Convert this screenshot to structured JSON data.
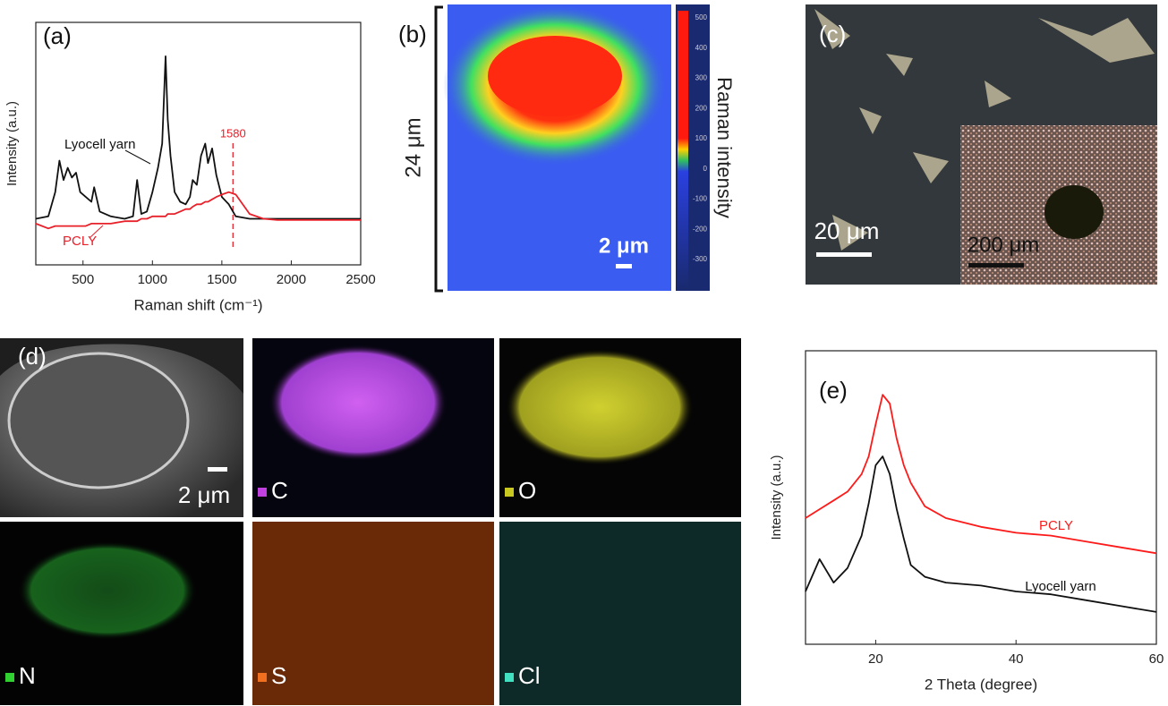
{
  "chart_data": [
    {
      "type": "line",
      "panel_label": "(a)",
      "xlabel": "Raman shift (cm⁻¹)",
      "ylabel": "Intensity (a.u.)",
      "xlim": [
        160,
        2500
      ],
      "xticks": [
        500,
        1000,
        1500,
        2000,
        2500
      ],
      "ylim": [
        0,
        100
      ],
      "marker_x": 1580,
      "x": [
        160,
        250,
        300,
        330,
        360,
        390,
        420,
        450,
        480,
        520,
        560,
        580,
        620,
        700,
        800,
        860,
        890,
        920,
        960,
        1000,
        1040,
        1070,
        1095,
        1110,
        1130,
        1160,
        1200,
        1240,
        1270,
        1290,
        1320,
        1350,
        1380,
        1400,
        1430,
        1460,
        1500,
        1550,
        1600,
        1700,
        1800,
        1900,
        2000,
        2200,
        2400,
        2500
      ],
      "series": [
        {
          "name": "Lyocell yarn",
          "color": "#111111",
          "values": [
            19,
            20,
            30,
            43,
            35,
            40,
            36,
            38,
            30,
            28,
            26,
            32,
            22,
            20,
            19,
            20,
            35,
            21,
            22,
            30,
            40,
            50,
            86,
            60,
            45,
            30,
            26,
            25,
            28,
            35,
            33,
            45,
            50,
            42,
            48,
            37,
            28,
            25,
            20,
            19,
            19,
            19,
            19,
            19,
            19,
            19
          ]
        },
        {
          "name": "PCLY",
          "color": "#e8202a",
          "values": [
            17,
            15,
            16,
            16,
            16,
            16,
            16,
            16,
            16,
            16,
            17,
            17,
            17,
            17,
            18,
            18,
            18,
            19,
            19,
            20,
            20,
            20,
            20,
            21,
            21,
            21,
            22,
            23,
            23,
            24,
            25,
            25,
            26,
            26,
            27,
            28,
            29,
            30,
            29,
            21,
            19,
            18.5,
            18.5,
            18.5,
            18.5,
            18.5
          ]
        }
      ]
    },
    {
      "type": "line",
      "panel_label": "(e)",
      "xlabel": "2 Theta (degree)",
      "ylabel": "Intensity (a.u.)",
      "xlim": [
        10,
        60
      ],
      "xticks": [
        20,
        40,
        60
      ],
      "ylim": [
        0,
        100
      ],
      "x": [
        10,
        12,
        14,
        16,
        18,
        19,
        20,
        21,
        22,
        23,
        24,
        25,
        27,
        30,
        35,
        40,
        45,
        50,
        55,
        60
      ],
      "series": [
        {
          "name": "PCLY",
          "color": "#ff1a1a",
          "values": [
            43,
            46,
            49,
            52,
            58,
            64,
            75,
            85,
            82,
            70,
            61,
            55,
            47,
            43,
            40,
            38,
            37,
            35,
            33,
            31
          ]
        },
        {
          "name": "Lyocell yarn",
          "color": "#111111",
          "values": [
            18,
            29,
            21,
            26,
            37,
            48,
            61,
            64,
            58,
            46,
            36,
            27,
            23,
            21,
            20,
            18,
            17,
            15,
            13,
            11
          ]
        }
      ]
    }
  ],
  "panel_b": {
    "label": "(b)",
    "height_label": "24 μm",
    "scale_bar": "2 μm",
    "colorbar_label": "Raman intensity",
    "colorbar_ticks": [
      500,
      400,
      300,
      200,
      100,
      0,
      -100,
      -200,
      -300
    ]
  },
  "panel_c": {
    "label": "(c)",
    "scale_bar": "20 μm",
    "inset_scale_bar": "200 μm"
  },
  "panel_d": {
    "label": "(d)",
    "scale_bar": "2 μm",
    "elements": [
      "C",
      "O",
      "N",
      "S",
      "Cl"
    ]
  }
}
